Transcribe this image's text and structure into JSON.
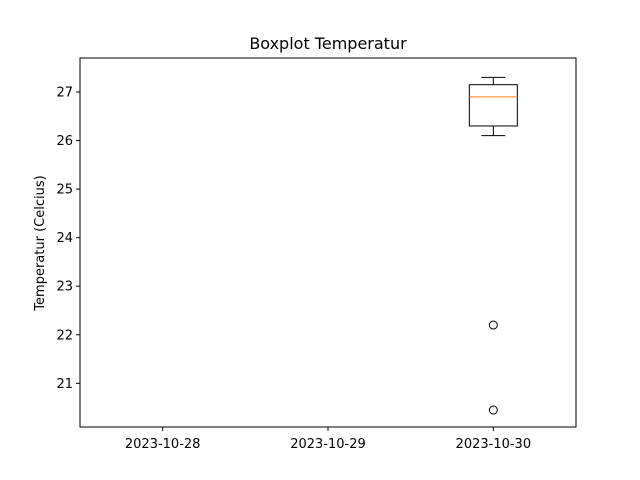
{
  "chart_data": {
    "type": "box",
    "title": "Boxplot Temperatur",
    "xlabel": "",
    "ylabel": "Temperatur (Celcius)",
    "categories": [
      "2023-10-28",
      "2023-10-29",
      "2023-10-30"
    ],
    "ylim": [
      20.1,
      27.7
    ],
    "yticks": [
      21,
      22,
      23,
      24,
      25,
      26,
      27
    ],
    "grid": false,
    "boxes": [
      {
        "category": "2023-10-28",
        "stats": null,
        "outliers": []
      },
      {
        "category": "2023-10-29",
        "stats": null,
        "outliers": []
      },
      {
        "category": "2023-10-30",
        "stats": {
          "whislo": 26.1,
          "q1": 26.3,
          "med": 26.9,
          "q3": 27.15,
          "whishi": 27.3
        },
        "outliers": [
          22.2,
          20.45
        ]
      }
    ],
    "colors": {
      "box": "#000000",
      "median": "#ff7f0e",
      "outlier": "#000000"
    }
  }
}
